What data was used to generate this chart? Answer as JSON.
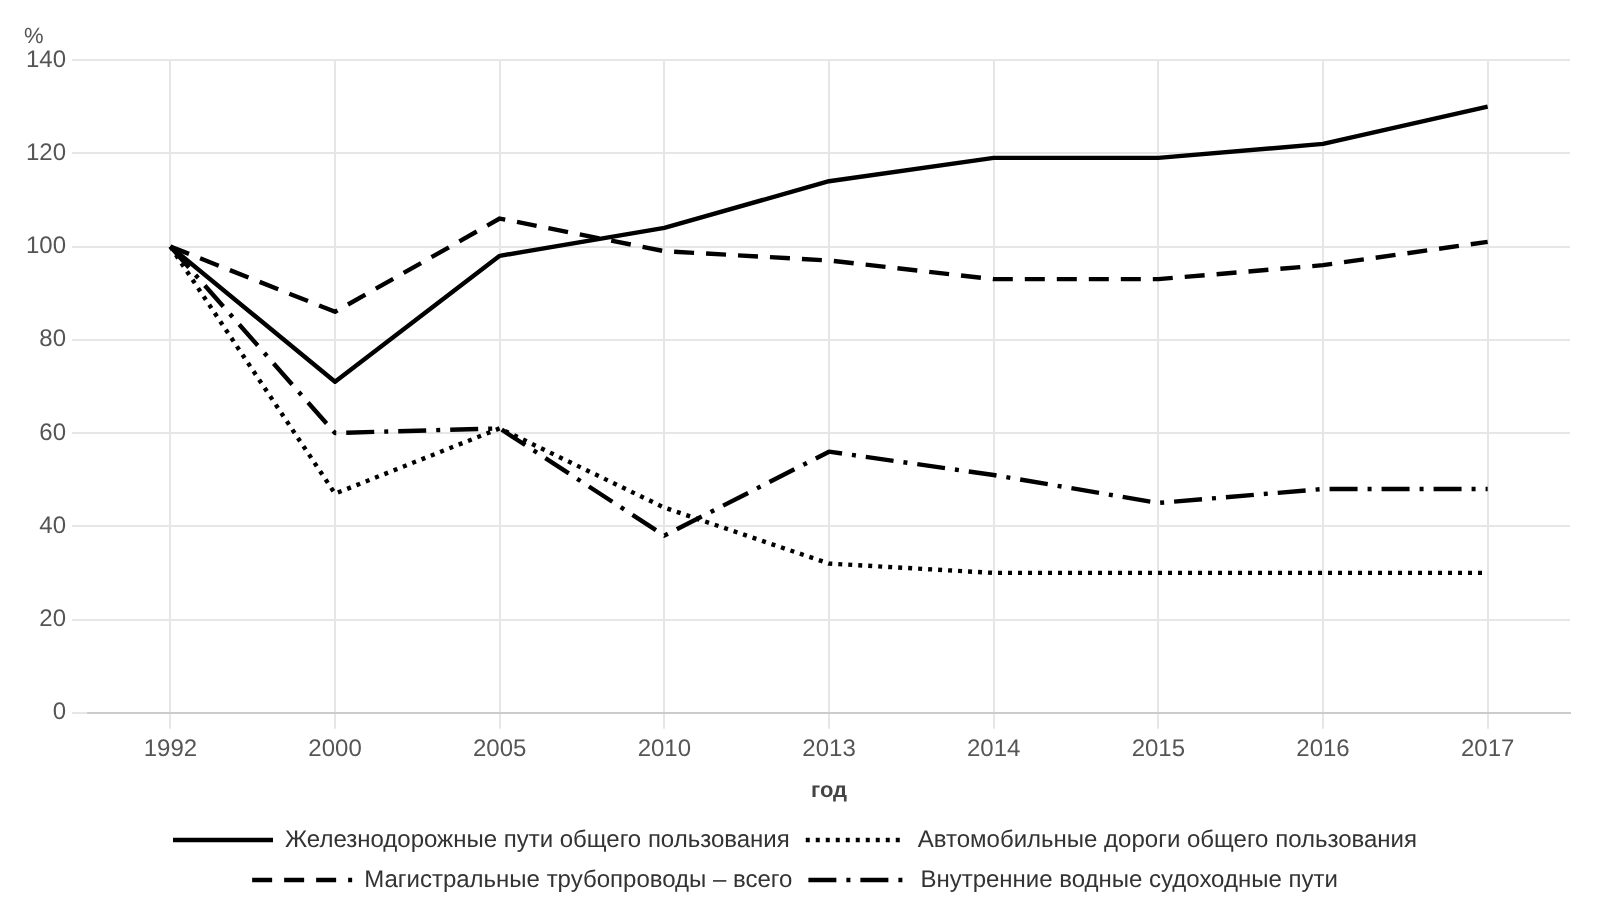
{
  "chart_data": {
    "type": "line",
    "xlabel": "год",
    "ylabel": "%",
    "categories": [
      "1992",
      "2000",
      "2005",
      "2010",
      "2013",
      "2014",
      "2015",
      "2016",
      "2017"
    ],
    "ylim": [
      0,
      140
    ],
    "yticks": [
      0,
      20,
      40,
      60,
      80,
      100,
      120,
      140
    ],
    "grid": true,
    "legend": "bottom",
    "marker": "none",
    "series": [
      {
        "name": "Железнодорожные пути общего пользования",
        "color": "#000000",
        "line_style": "solid",
        "values": [
          100,
          71,
          98,
          104,
          114,
          119,
          119,
          122,
          130
        ]
      },
      {
        "name": "Автомобильные дороги общего пользования",
        "color": "#000000",
        "line_style": "dotted",
        "values": [
          100,
          47,
          61,
          44,
          32,
          30,
          30,
          30,
          30
        ]
      },
      {
        "name": "Магистральные трубопроводы – всего",
        "color": "#000000",
        "line_style": "dashed",
        "values": [
          100,
          86,
          106,
          99,
          97,
          93,
          93,
          96,
          101
        ]
      },
      {
        "name": "Внутренние водные судоходные пути",
        "color": "#000000",
        "line_style": "dashdot",
        "values": [
          100,
          60,
          61,
          38,
          56,
          51,
          45,
          48,
          48
        ]
      }
    ]
  }
}
